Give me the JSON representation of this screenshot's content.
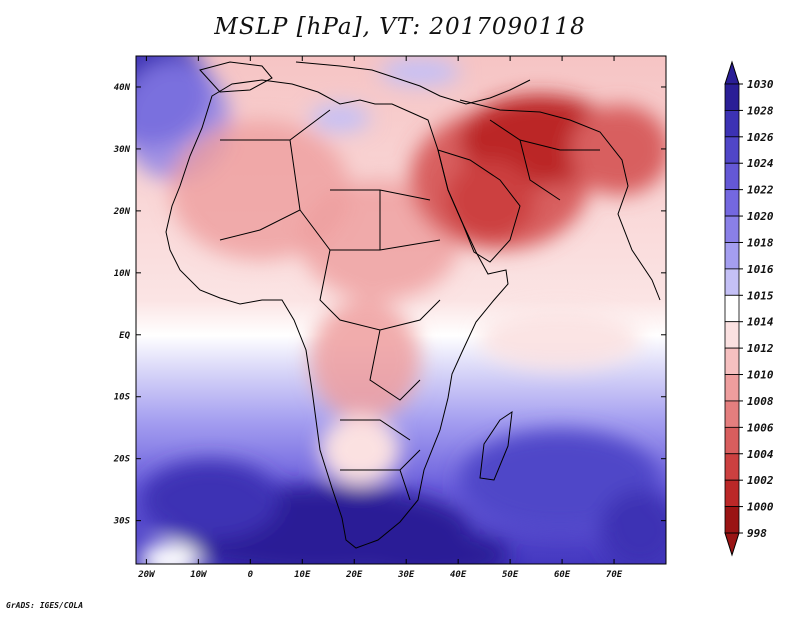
{
  "title": "MSLP [hPa], VT: 2017090118",
  "credit": "GrADS: IGES/COLA",
  "axes": {
    "lat_labels": [
      "40N",
      "30N",
      "20N",
      "10N",
      "EQ",
      "10S",
      "20S",
      "30S"
    ],
    "lat_values": [
      40,
      30,
      20,
      10,
      0,
      -10,
      -20,
      -30
    ],
    "lon_labels": [
      "20W",
      "10W",
      "0",
      "10E",
      "20E",
      "30E",
      "40E",
      "50E",
      "60E",
      "70E"
    ],
    "lon_values": [
      -20,
      -10,
      0,
      10,
      20,
      30,
      40,
      50,
      60,
      70
    ],
    "lon_range": [
      -22,
      80
    ],
    "lat_range": [
      -37,
      45
    ]
  },
  "colorbar": {
    "labels": [
      "1030",
      "1028",
      "1026",
      "1024",
      "1022",
      "1020",
      "1018",
      "1016",
      "1015",
      "1014",
      "1012",
      "1010",
      "1008",
      "1006",
      "1004",
      "1002",
      "1000",
      "998"
    ],
    "colors": [
      "#2a1e96",
      "#3c32b4",
      "#5046c8",
      "#6458d6",
      "#7468e0",
      "#8a80e8",
      "#a49ef0",
      "#c4c0f6",
      "#e2e0fb",
      "#ffffff",
      "#fbe1e1",
      "#f6c0c0",
      "#ee9e9e",
      "#e47e7e",
      "#d85e5e",
      "#cc4040",
      "#bb2828",
      "#9a1414"
    ]
  },
  "colors": {
    "ocean_high": "#2a1e96",
    "neutral": "#ffffff",
    "low": "#bb2828",
    "border": "#000000"
  }
}
